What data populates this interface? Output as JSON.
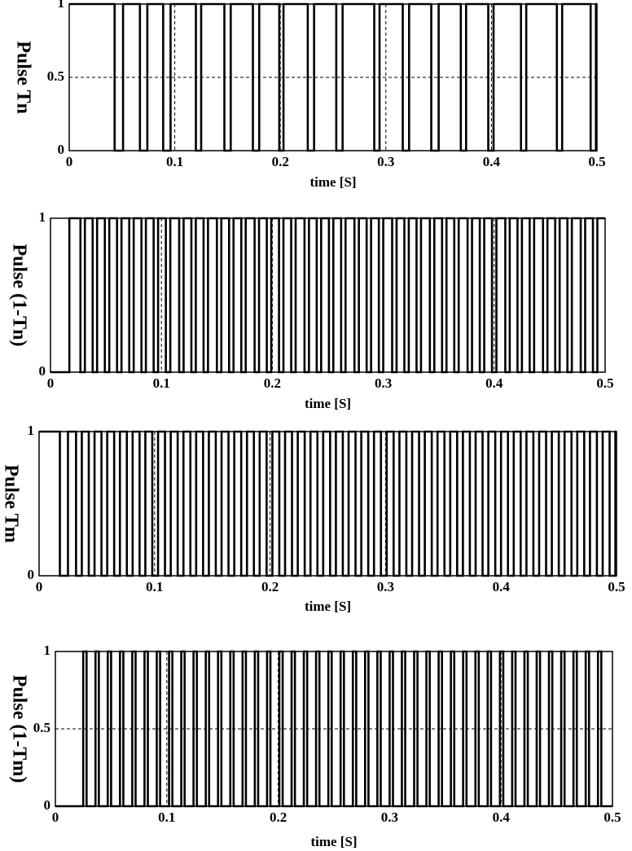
{
  "chart_data": [
    {
      "type": "line",
      "drawstyle": "steps-post",
      "ylabel": "Pulse Tn",
      "xlabel": "time [S]",
      "color": "#000000",
      "grid": true,
      "xlim": [
        0,
        0.5
      ],
      "xticks": [
        0,
        0.1,
        0.2,
        0.3,
        0.4,
        0.5
      ],
      "ylim": [
        0,
        1
      ],
      "yticks": [
        0,
        0.5,
        1
      ],
      "x": [
        0,
        0.043,
        0.051,
        0.067,
        0.074,
        0.089,
        0.096,
        0.12,
        0.125,
        0.147,
        0.153,
        0.174,
        0.18,
        0.199,
        0.203,
        0.226,
        0.232,
        0.253,
        0.259,
        0.289,
        0.294,
        0.316,
        0.322,
        0.343,
        0.35,
        0.371,
        0.376,
        0.397,
        0.402,
        0.428,
        0.433,
        0.462,
        0.467,
        0.494,
        0.499
      ],
      "values": [
        1,
        0,
        1,
        0,
        1,
        0,
        1,
        0,
        1,
        0,
        1,
        0,
        1,
        0,
        1,
        0,
        1,
        0,
        1,
        0,
        1,
        0,
        1,
        0,
        1,
        0,
        1,
        0,
        1,
        0,
        1,
        0,
        1,
        0,
        1
      ]
    },
    {
      "type": "line",
      "drawstyle": "steps-post",
      "ylabel": "Pulse (1-Tn)",
      "xlabel": "time [S]",
      "color": "#000000",
      "grid": true,
      "xlim": [
        0,
        0.5
      ],
      "xticks": [
        0,
        0.1,
        0.2,
        0.3,
        0.4,
        0.5
      ],
      "ylim": [
        0,
        1
      ],
      "yticks": [
        0,
        1
      ],
      "x": [
        0,
        0.017,
        0.027,
        0.031,
        0.038,
        0.042,
        0.049,
        0.053,
        0.06,
        0.064,
        0.071,
        0.075,
        0.082,
        0.086,
        0.093,
        0.097,
        0.104,
        0.108,
        0.116,
        0.12,
        0.127,
        0.131,
        0.138,
        0.142,
        0.15,
        0.154,
        0.161,
        0.165,
        0.172,
        0.176,
        0.184,
        0.188,
        0.195,
        0.199,
        0.206,
        0.21,
        0.217,
        0.221,
        0.229,
        0.233,
        0.24,
        0.244,
        0.251,
        0.255,
        0.262,
        0.266,
        0.274,
        0.278,
        0.285,
        0.289,
        0.296,
        0.3,
        0.308,
        0.312,
        0.319,
        0.323,
        0.33,
        0.334,
        0.342,
        0.346,
        0.353,
        0.357,
        0.364,
        0.368,
        0.376,
        0.38,
        0.387,
        0.391,
        0.398,
        0.402,
        0.41,
        0.414,
        0.421,
        0.425,
        0.432,
        0.436,
        0.444,
        0.448,
        0.455,
        0.459,
        0.466,
        0.47,
        0.478,
        0.482,
        0.489,
        0.493
      ],
      "values": [
        0,
        1,
        0,
        1,
        0,
        1,
        0,
        1,
        0,
        1,
        0,
        1,
        0,
        1,
        0,
        1,
        0,
        1,
        0,
        1,
        0,
        1,
        0,
        1,
        0,
        1,
        0,
        1,
        0,
        1,
        0,
        1,
        0,
        1,
        0,
        1,
        0,
        1,
        0,
        1,
        0,
        1,
        0,
        1,
        0,
        1,
        0,
        1,
        0,
        1,
        0,
        1,
        0,
        1,
        0,
        1,
        0,
        1,
        0,
        1,
        0,
        1,
        0,
        1,
        0,
        1,
        0,
        1,
        0,
        1,
        0,
        1,
        0,
        1,
        0,
        1,
        0,
        1,
        0,
        1,
        0,
        1,
        0,
        1,
        0,
        1
      ]
    },
    {
      "type": "line",
      "drawstyle": "steps-post",
      "ylabel": "Pulse Tm",
      "xlabel": "time [S]",
      "color": "#000000",
      "grid": true,
      "xlim": [
        0,
        0.5
      ],
      "xticks": [
        0,
        0.1,
        0.2,
        0.3,
        0.4,
        0.5
      ],
      "ylim": [
        0,
        1
      ],
      "yticks": [
        0,
        1
      ],
      "x": [
        0,
        0.018,
        0.025,
        0.032,
        0.037,
        0.043,
        0.048,
        0.054,
        0.059,
        0.065,
        0.07,
        0.076,
        0.081,
        0.087,
        0.092,
        0.098,
        0.103,
        0.109,
        0.114,
        0.12,
        0.125,
        0.131,
        0.136,
        0.142,
        0.147,
        0.153,
        0.158,
        0.164,
        0.169,
        0.175,
        0.18,
        0.186,
        0.191,
        0.197,
        0.202,
        0.208,
        0.213,
        0.219,
        0.224,
        0.23,
        0.235,
        0.241,
        0.246,
        0.252,
        0.257,
        0.263,
        0.268,
        0.274,
        0.279,
        0.285,
        0.29,
        0.296,
        0.301,
        0.307,
        0.312,
        0.318,
        0.323,
        0.329,
        0.334,
        0.34,
        0.345,
        0.351,
        0.356,
        0.362,
        0.367,
        0.373,
        0.378,
        0.384,
        0.389,
        0.395,
        0.4,
        0.406,
        0.411,
        0.417,
        0.422,
        0.428,
        0.433,
        0.439,
        0.444,
        0.45,
        0.455,
        0.461,
        0.466,
        0.472,
        0.477,
        0.483,
        0.488,
        0.494,
        0.499
      ],
      "values": [
        1,
        0,
        1,
        0,
        1,
        0,
        1,
        0,
        1,
        0,
        1,
        0,
        1,
        0,
        1,
        0,
        1,
        0,
        1,
        0,
        1,
        0,
        1,
        0,
        1,
        0,
        1,
        0,
        1,
        0,
        1,
        0,
        1,
        0,
        1,
        0,
        1,
        0,
        1,
        0,
        1,
        0,
        1,
        0,
        1,
        0,
        1,
        0,
        1,
        0,
        1,
        0,
        1,
        0,
        1,
        0,
        1,
        0,
        1,
        0,
        1,
        0,
        1,
        0,
        1,
        0,
        1,
        0,
        1,
        0,
        1,
        0,
        1,
        0,
        1,
        0,
        1,
        0,
        1,
        0,
        1,
        0,
        1,
        0,
        1,
        0,
        1,
        0,
        1
      ]
    },
    {
      "type": "line",
      "drawstyle": "steps-post",
      "ylabel": "Pulse (1-Tm)",
      "xlabel": "time [S]",
      "color": "#000000",
      "grid": true,
      "xlim": [
        0,
        0.5
      ],
      "xticks": [
        0,
        0.1,
        0.2,
        0.3,
        0.4,
        0.5
      ],
      "ylim": [
        0,
        1
      ],
      "yticks": [
        0,
        0.5,
        1
      ],
      "x": [
        0,
        0.025,
        0.028,
        0.036,
        0.039,
        0.047,
        0.05,
        0.058,
        0.061,
        0.069,
        0.072,
        0.08,
        0.083,
        0.091,
        0.094,
        0.102,
        0.105,
        0.113,
        0.116,
        0.124,
        0.127,
        0.135,
        0.138,
        0.146,
        0.149,
        0.157,
        0.16,
        0.168,
        0.171,
        0.179,
        0.182,
        0.19,
        0.193,
        0.201,
        0.204,
        0.212,
        0.215,
        0.223,
        0.226,
        0.234,
        0.237,
        0.245,
        0.248,
        0.256,
        0.259,
        0.267,
        0.27,
        0.278,
        0.281,
        0.289,
        0.292,
        0.3,
        0.303,
        0.311,
        0.314,
        0.322,
        0.325,
        0.333,
        0.336,
        0.344,
        0.347,
        0.355,
        0.358,
        0.366,
        0.369,
        0.377,
        0.38,
        0.388,
        0.391,
        0.399,
        0.402,
        0.41,
        0.413,
        0.421,
        0.424,
        0.432,
        0.435,
        0.443,
        0.446,
        0.454,
        0.457,
        0.465,
        0.468,
        0.476,
        0.479,
        0.487,
        0.49
      ],
      "values": [
        0,
        1,
        0,
        1,
        0,
        1,
        0,
        1,
        0,
        1,
        0,
        1,
        0,
        1,
        0,
        1,
        0,
        1,
        0,
        1,
        0,
        1,
        0,
        1,
        0,
        1,
        0,
        1,
        0,
        1,
        0,
        1,
        0,
        1,
        0,
        1,
        0,
        1,
        0,
        1,
        0,
        1,
        0,
        1,
        0,
        1,
        0,
        1,
        0,
        1,
        0,
        1,
        0,
        1,
        0,
        1,
        0,
        1,
        0,
        1,
        0,
        1,
        0,
        1,
        0,
        1,
        0,
        1,
        0,
        1,
        0,
        1,
        0,
        1,
        0,
        1,
        0,
        1,
        0,
        1,
        0,
        1,
        0,
        1,
        0,
        1,
        0
      ]
    }
  ]
}
